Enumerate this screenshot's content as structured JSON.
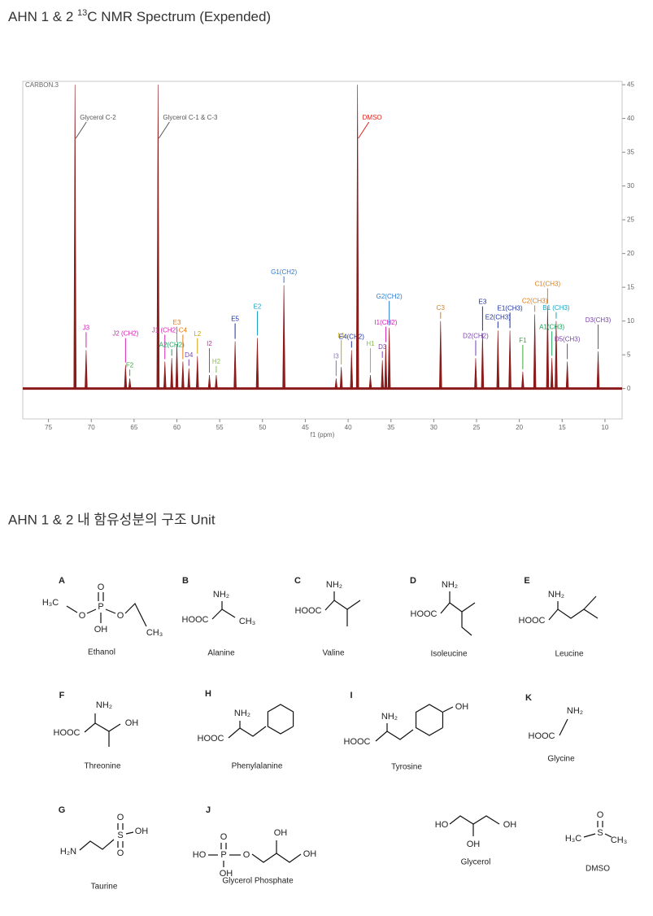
{
  "title": {
    "prefix": "AHN 1 & 2 ",
    "isotope": "13",
    "rest": "C NMR Spectrum (Expended)"
  },
  "chart_data": {
    "type": "nmr",
    "dataset_label": "CARBON.3",
    "x_label": "f1 (ppm)",
    "line_color": "#8b1a1a",
    "xlim": [
      78,
      8
    ],
    "xticks": [
      75,
      70,
      65,
      60,
      55,
      50,
      45,
      40,
      35,
      30,
      25,
      20,
      15,
      10
    ],
    "ylim": [
      -4.5,
      45.5
    ],
    "yticks": [
      0,
      5,
      10,
      15,
      20,
      25,
      30,
      35,
      40,
      45
    ],
    "peaks": [
      {
        "label": "Glycerol C-2",
        "ppm": 71.9,
        "height": 45,
        "color": "#555555"
      },
      {
        "label": "J3",
        "ppm": 70.6,
        "height": 5.7,
        "color": "#d21fb0"
      },
      {
        "label": "J2 (CH2)",
        "ppm": 66.0,
        "height": 3.5,
        "color": "#d21fb0"
      },
      {
        "label": "F2",
        "ppm": 65.5,
        "height": 1.5,
        "color": "#3aa53a"
      },
      {
        "label": "Glycerol C-1 & C-3",
        "ppm": 62.2,
        "height": 45,
        "color": "#555555"
      },
      {
        "label": "J1 (CH2)",
        "ppm": 61.4,
        "height": 4,
        "color": "#d21fb0"
      },
      {
        "label": "A2(CH2)",
        "ppm": 60.6,
        "height": 4.5,
        "color": "#1aa05a"
      },
      {
        "label": "E3",
        "ppm": 60.0,
        "height": 6.5,
        "color": "#e07b10"
      },
      {
        "label": "C4",
        "ppm": 59.3,
        "height": 4,
        "color": "#e07b10"
      },
      {
        "label": "D4",
        "ppm": 58.6,
        "height": 3,
        "color": "#7a3fb0"
      },
      {
        "label": "L2",
        "ppm": 57.6,
        "height": 4.8,
        "color": "#c9a400"
      },
      {
        "label": "I2",
        "ppm": 56.2,
        "height": 2,
        "color": "#d21fb0"
      },
      {
        "label": "H2",
        "ppm": 55.4,
        "height": 2,
        "color": "#7fc43a"
      },
      {
        "label": "E5",
        "ppm": 53.2,
        "height": 7,
        "color": "#1a2fa0"
      },
      {
        "label": "E2",
        "ppm": 50.6,
        "height": 7.5,
        "color": "#17a3c4"
      },
      {
        "label": "G1(CH2)",
        "ppm": 47.5,
        "height": 15.3,
        "color": "#2a7ad0"
      },
      {
        "label": "I3",
        "ppm": 41.4,
        "height": 1.5,
        "color": "#8a6ad0"
      },
      {
        "label": "L1",
        "ppm": 40.8,
        "height": 3.2,
        "color": "#c9a400"
      },
      {
        "label": "E4(CH2)",
        "ppm": 39.6,
        "height": 5.7,
        "color": "#1a2fa0"
      },
      {
        "label": "DMSO",
        "ppm": 38.9,
        "height": 45,
        "color": "#e0201b"
      },
      {
        "label": "H1",
        "ppm": 37.4,
        "height": 2,
        "color": "#7fc43a"
      },
      {
        "label": "D3",
        "ppm": 36.0,
        "height": 4.2,
        "color": "#7a3fb0"
      },
      {
        "label": "I1(CH2)",
        "ppm": 35.6,
        "height": 6.5,
        "color": "#d21fb0"
      },
      {
        "label": "G2(CH2)",
        "ppm": 35.2,
        "height": 9,
        "color": "#2a7ad0"
      },
      {
        "label": "C3",
        "ppm": 29.2,
        "height": 10,
        "color": "#e07b10"
      },
      {
        "label": "D2(CH2)",
        "ppm": 25.1,
        "height": 4.5,
        "color": "#7a3fb0"
      },
      {
        "label": "E3",
        "ppm": 24.3,
        "height": 8.2,
        "color": "#1a2fa0"
      },
      {
        "label": "E2(CH3)",
        "ppm": 22.5,
        "height": 8.6,
        "color": "#1a2fa0"
      },
      {
        "label": "E1(CH3)",
        "ppm": 21.1,
        "height": 8.6,
        "color": "#1a2fa0"
      },
      {
        "label": "F1",
        "ppm": 19.6,
        "height": 2.5,
        "color": "#3aa53a"
      },
      {
        "label": "C2(CH3)",
        "ppm": 18.2,
        "height": 11,
        "color": "#e07b10"
      },
      {
        "label": "C1(CH3)",
        "ppm": 16.7,
        "height": 12.2,
        "color": "#e07b10"
      },
      {
        "label": "A1(CH3)",
        "ppm": 16.2,
        "height": 4.5,
        "color": "#1aa05a"
      },
      {
        "label": "B1 (CH3)",
        "ppm": 15.7,
        "height": 10,
        "color": "#17a3c4"
      },
      {
        "label": "D5(CH3)",
        "ppm": 14.4,
        "height": 4,
        "color": "#7a3fb0"
      },
      {
        "label": "D3(CH3)",
        "ppm": 10.8,
        "height": 5.5,
        "color": "#7a3fb0"
      }
    ]
  },
  "section_title": "AHN 1 & 2 내 함유성분의 구조 Unit",
  "structures": [
    {
      "letter": "A",
      "name": "Ethanol",
      "atoms": [
        "H₃C",
        "O",
        "P",
        "O",
        "OH",
        "O",
        "CH₃"
      ]
    },
    {
      "letter": "B",
      "name": "Alanine",
      "atoms": [
        "NH₂",
        "HOOC",
        "CH₃"
      ]
    },
    {
      "letter": "C",
      "name": "Valine",
      "atoms": [
        "NH₂",
        "HOOC"
      ]
    },
    {
      "letter": "D",
      "name": "Isoleucine",
      "atoms": [
        "NH₂",
        "HOOC"
      ]
    },
    {
      "letter": "E",
      "name": "Leucine",
      "atoms": [
        "NH₂",
        "HOOC"
      ]
    },
    {
      "letter": "F",
      "name": "Threonine",
      "atoms": [
        "NH₂",
        "HOOC",
        "OH"
      ]
    },
    {
      "letter": "H",
      "name": "Phenylalanine",
      "atoms": [
        "NH₂",
        "HOOC"
      ]
    },
    {
      "letter": "I",
      "name": "Tyrosine",
      "atoms": [
        "NH₂",
        "HOOC",
        "OH"
      ]
    },
    {
      "letter": "K",
      "name": "Glycine",
      "atoms": [
        "NH₂",
        "HOOC"
      ]
    },
    {
      "letter": "G",
      "name": "Taurine",
      "atoms": [
        "H₂N",
        "S",
        "O",
        "O",
        "OH"
      ]
    },
    {
      "letter": "J",
      "name": "Glycerol Phosphate",
      "atoms": [
        "HO",
        "P",
        "O",
        "OH",
        "O",
        "OH",
        "OH"
      ]
    },
    {
      "name": "Glycerol",
      "atoms": [
        "HO",
        "OH",
        "OH"
      ]
    },
    {
      "name": "DMSO",
      "atoms": [
        "O",
        "S",
        "H₃C",
        "CH₃"
      ]
    }
  ]
}
